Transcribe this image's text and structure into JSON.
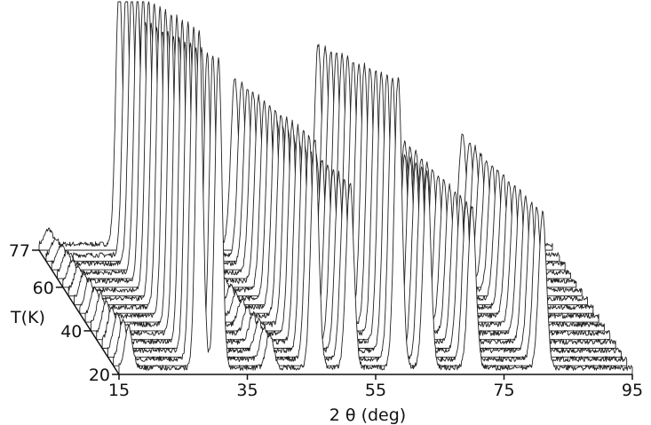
{
  "chart_data": {
    "type": "area",
    "title": "",
    "xlabel": "2 θ (deg)",
    "ylabel": "",
    "zlabel": "T(K)",
    "x_ticks": [
      "15",
      "35",
      "55",
      "75",
      "95"
    ],
    "xlim": [
      15,
      95
    ],
    "t_ticks": [
      "20",
      "40",
      "60",
      "77"
    ],
    "tlim": [
      20,
      77
    ],
    "temperatures": [
      20,
      24,
      28,
      32,
      36,
      40,
      44,
      48,
      52,
      56,
      60,
      64,
      68,
      72,
      77
    ],
    "peaks": [
      {
        "two_theta": 27.5,
        "height_20K": 1.0,
        "height_77K": 0.87,
        "width": 0.55
      },
      {
        "two_theta": 30.5,
        "height_20K": 0.92,
        "height_77K": 0.75,
        "width": 0.55
      },
      {
        "two_theta": 45.5,
        "height_20K": 0.68,
        "height_77K": 0.55,
        "width": 0.6
      },
      {
        "two_theta": 51.0,
        "height_20K": 0.55,
        "height_77K": 0.42,
        "width": 0.6
      },
      {
        "two_theta": 58.5,
        "height_20K": 0.86,
        "height_77K": 0.66,
        "width": 0.6
      },
      {
        "two_theta": 63.0,
        "height_20K": 0.58,
        "height_77K": 0.46,
        "width": 0.6
      },
      {
        "two_theta": 70.0,
        "height_20K": 0.48,
        "height_77K": 0.38,
        "width": 0.6
      },
      {
        "two_theta": 81.0,
        "height_20K": 0.46,
        "height_77K": 0.36,
        "width": 0.6
      },
      {
        "two_theta": 38.5,
        "height_20K": 0.1,
        "height_77K": 0.03,
        "width": 0.6
      },
      {
        "two_theta": 16.5,
        "height_20K": 0.12,
        "height_77K": 0.05,
        "width": 0.6
      }
    ],
    "background_level": 0.02,
    "grid": false,
    "legend": "none"
  }
}
